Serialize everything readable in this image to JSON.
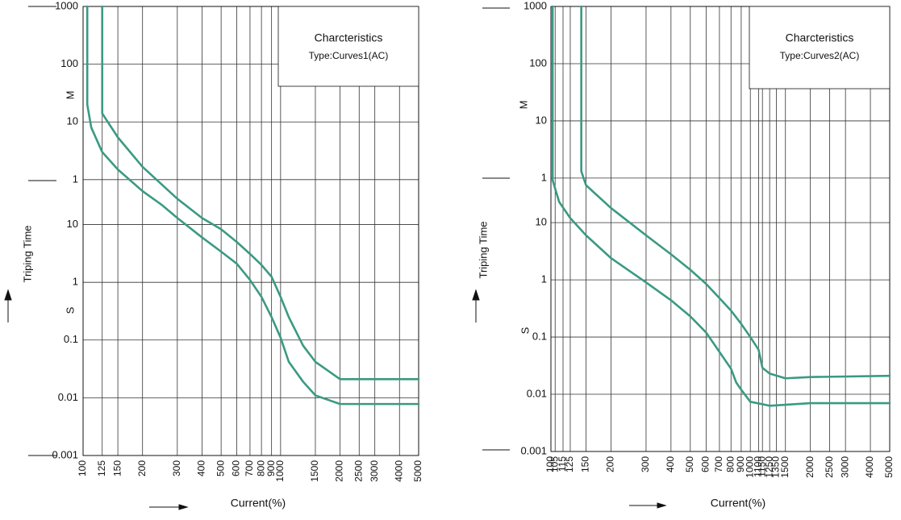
{
  "chart_data": [
    {
      "type": "line",
      "title": "Charcteristics",
      "subtitle": "Type:Curves1(AC)",
      "y_label": "Triping Time",
      "y_section_labels": [
        "M",
        "S"
      ],
      "x_label": "Current(%)",
      "log_x": true,
      "log_y": true,
      "grid": true,
      "xlim": [
        100,
        5000
      ],
      "xticks": [
        100,
        125,
        150,
        200,
        300,
        400,
        500,
        600,
        700,
        800,
        900,
        1000,
        1500,
        2000,
        2500,
        3000,
        4000,
        5000
      ],
      "ylim": [
        0.001,
        60000
      ],
      "yticks": [
        {
          "value": 60000,
          "label": "1000"
        },
        {
          "value": 6000,
          "label": "100"
        },
        {
          "value": 600,
          "label": "10"
        },
        {
          "value": 60,
          "label": "1"
        },
        10,
        1,
        0.1,
        0.01,
        0.001
      ],
      "series": [
        {
          "color": "#3a9a82",
          "x": [
            105,
            105,
            110,
            125,
            150,
            200,
            250,
            300,
            400,
            500,
            600,
            700,
            800,
            900,
            1000,
            1100,
            1300,
            1500,
            2000,
            5000
          ],
          "values": [
            60000,
            1200,
            480,
            180,
            90,
            38,
            22,
            13,
            6,
            3.4,
            2.1,
            1.1,
            0.56,
            0.25,
            0.11,
            0.042,
            0.019,
            0.011,
            0.0078,
            0.0078
          ]
        },
        {
          "color": "#3a9a82",
          "x": [
            125,
            125,
            150,
            200,
            300,
            400,
            500,
            600,
            700,
            800,
            900,
            1000,
            1100,
            1300,
            1500,
            2000,
            5000
          ],
          "values": [
            60000,
            840,
            324,
            100,
            28,
            13,
            8.3,
            5,
            3.1,
            2,
            1.25,
            0.56,
            0.25,
            0.08,
            0.042,
            0.021,
            0.021
          ]
        }
      ]
    },
    {
      "type": "line",
      "title": "Charcteristics",
      "subtitle": "Type:Curves2(AC)",
      "y_label": "Triping Time",
      "y_section_labels": [
        "M",
        "S"
      ],
      "x_label": "Current(%)",
      "log_x": true,
      "log_y": true,
      "grid": true,
      "xlim": [
        100,
        5000
      ],
      "xticks": [
        100,
        105,
        115,
        125,
        150,
        200,
        300,
        400,
        500,
        600,
        700,
        800,
        900,
        1000,
        1100,
        1150,
        1250,
        1350,
        1500,
        2000,
        2500,
        3000,
        4000,
        5000
      ],
      "ylim": [
        0.001,
        60000
      ],
      "yticks": [
        {
          "value": 60000,
          "label": "1000"
        },
        {
          "value": 6000,
          "label": "100"
        },
        {
          "value": 600,
          "label": "10"
        },
        {
          "value": 60,
          "label": "1"
        },
        10,
        1,
        0.1,
        0.01,
        0.001
      ],
      "series": [
        {
          "color": "#3a9a82",
          "x": [
            102,
            102,
            110,
            125,
            150,
            200,
            300,
            400,
            500,
            600,
            700,
            800,
            850,
            900,
            1000,
            1250,
            2000,
            5000
          ],
          "values": [
            60000,
            55,
            23,
            12,
            6,
            2.4,
            0.9,
            0.44,
            0.23,
            0.12,
            0.055,
            0.028,
            0.016,
            0.012,
            0.0074,
            0.0063,
            0.007,
            0.007
          ]
        },
        {
          "color": "#3a9a82",
          "x": [
            142,
            142,
            150,
            200,
            300,
            400,
            500,
            600,
            700,
            800,
            900,
            1000,
            1100,
            1150,
            1250,
            1500,
            2000,
            5000
          ],
          "values": [
            60000,
            79,
            45,
            18,
            6,
            2.8,
            1.5,
            0.85,
            0.48,
            0.29,
            0.17,
            0.1,
            0.06,
            0.029,
            0.023,
            0.019,
            0.02,
            0.021
          ]
        }
      ]
    }
  ]
}
